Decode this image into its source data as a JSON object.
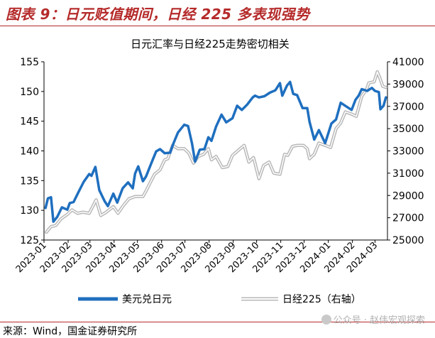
{
  "figure": {
    "title": "图表 9：日元贬值期间，日经 225 多表现强势",
    "source": "来源：Wind，国金证券研究所",
    "watermark": "公众号 · 赵伟宏观探索"
  },
  "chart_data": {
    "type": "line",
    "title": "日元汇率与日经225走势密切相关",
    "x_labels": [
      "2023-01",
      "2023-02",
      "2023-03",
      "2023-04",
      "2023-05",
      "2023-06",
      "2023-07",
      "2023-08",
      "2023-09",
      "2023-10",
      "2023-11",
      "2023-12",
      "2024-01",
      "2024-02",
      "2024-03"
    ],
    "y_left": {
      "min": 125,
      "max": 155,
      "ticks": [
        125,
        130,
        135,
        140,
        145,
        150,
        155
      ]
    },
    "y_right": {
      "min": 25000,
      "max": 41000,
      "ticks": [
        25000,
        27000,
        29000,
        31000,
        33000,
        35000,
        37000,
        39000,
        41000
      ]
    },
    "legend_position": "bottom",
    "series": [
      {
        "name": "美元兑日元",
        "axis": "left",
        "color": "#1f6fbf",
        "points": [
          [
            "2023-01-03",
            130.4
          ],
          [
            "2023-01-06",
            132.0
          ],
          [
            "2023-01-10",
            132.2
          ],
          [
            "2023-01-13",
            128.1
          ],
          [
            "2023-01-18",
            128.9
          ],
          [
            "2023-01-24",
            130.5
          ],
          [
            "2023-01-31",
            130.1
          ],
          [
            "2023-02-03",
            131.2
          ],
          [
            "2023-02-08",
            131.4
          ],
          [
            "2023-02-14",
            133.0
          ],
          [
            "2023-02-21",
            134.8
          ],
          [
            "2023-02-28",
            136.1
          ],
          [
            "2023-03-03",
            135.8
          ],
          [
            "2023-03-08",
            137.3
          ],
          [
            "2023-03-13",
            133.4
          ],
          [
            "2023-03-20",
            131.5
          ],
          [
            "2023-03-24",
            130.7
          ],
          [
            "2023-03-31",
            132.8
          ],
          [
            "2023-04-05",
            131.3
          ],
          [
            "2023-04-12",
            133.7
          ],
          [
            "2023-04-19",
            134.7
          ],
          [
            "2023-04-25",
            133.7
          ],
          [
            "2023-04-28",
            136.2
          ],
          [
            "2023-05-02",
            137.4
          ],
          [
            "2023-05-08",
            134.9
          ],
          [
            "2023-05-12",
            135.7
          ],
          [
            "2023-05-19",
            138.0
          ],
          [
            "2023-05-25",
            139.9
          ],
          [
            "2023-05-30",
            140.3
          ],
          [
            "2023-06-05",
            139.6
          ],
          [
            "2023-06-12",
            139.7
          ],
          [
            "2023-06-16",
            141.2
          ],
          [
            "2023-06-22",
            143.1
          ],
          [
            "2023-06-30",
            144.4
          ],
          [
            "2023-07-05",
            144.2
          ],
          [
            "2023-07-10",
            141.3
          ],
          [
            "2023-07-14",
            138.2
          ],
          [
            "2023-07-20",
            140.2
          ],
          [
            "2023-07-26",
            140.3
          ],
          [
            "2023-07-31",
            142.3
          ],
          [
            "2023-08-04",
            141.7
          ],
          [
            "2023-08-10",
            144.1
          ],
          [
            "2023-08-17",
            146.1
          ],
          [
            "2023-08-23",
            144.8
          ],
          [
            "2023-08-31",
            145.5
          ],
          [
            "2023-09-06",
            147.6
          ],
          [
            "2023-09-12",
            146.9
          ],
          [
            "2023-09-19",
            147.8
          ],
          [
            "2023-09-26",
            149.0
          ],
          [
            "2023-09-29",
            149.3
          ],
          [
            "2023-10-04",
            149.0
          ],
          [
            "2023-10-11",
            149.2
          ],
          [
            "2023-10-18",
            149.8
          ],
          [
            "2023-10-25",
            150.2
          ],
          [
            "2023-10-31",
            151.4
          ],
          [
            "2023-11-03",
            149.3
          ],
          [
            "2023-11-09",
            151.0
          ],
          [
            "2023-11-13",
            151.6
          ],
          [
            "2023-11-17",
            149.6
          ],
          [
            "2023-11-22",
            149.4
          ],
          [
            "2023-11-29",
            147.2
          ],
          [
            "2023-12-05",
            147.2
          ],
          [
            "2023-12-08",
            144.9
          ],
          [
            "2023-12-14",
            141.9
          ],
          [
            "2023-12-20",
            143.5
          ],
          [
            "2023-12-28",
            141.3
          ],
          [
            "2024-01-05",
            144.6
          ],
          [
            "2024-01-11",
            145.3
          ],
          [
            "2024-01-17",
            148.1
          ],
          [
            "2024-01-24",
            147.5
          ],
          [
            "2024-01-31",
            146.9
          ],
          [
            "2024-02-05",
            148.6
          ],
          [
            "2024-02-09",
            149.3
          ],
          [
            "2024-02-13",
            150.4
          ],
          [
            "2024-02-20",
            150.1
          ],
          [
            "2024-02-26",
            150.6
          ],
          [
            "2024-03-01",
            150.1
          ],
          [
            "2024-03-06",
            149.9
          ],
          [
            "2024-03-08",
            147.0
          ],
          [
            "2024-03-12",
            147.6
          ],
          [
            "2024-03-15",
            149.0
          ]
        ]
      },
      {
        "name": "日经225（右轴）",
        "axis": "right",
        "color": "#b8b8b8",
        "points": [
          [
            "2023-01-04",
            25700
          ],
          [
            "2023-01-10",
            26200
          ],
          [
            "2023-01-16",
            26300
          ],
          [
            "2023-01-23",
            26900
          ],
          [
            "2023-01-31",
            27300
          ],
          [
            "2023-02-06",
            27700
          ],
          [
            "2023-02-13",
            27400
          ],
          [
            "2023-02-20",
            27500
          ],
          [
            "2023-02-28",
            27400
          ],
          [
            "2023-03-06",
            28200
          ],
          [
            "2023-03-09",
            28600
          ],
          [
            "2023-03-15",
            27200
          ],
          [
            "2023-03-22",
            27500
          ],
          [
            "2023-03-31",
            28000
          ],
          [
            "2023-04-06",
            27400
          ],
          [
            "2023-04-13",
            28100
          ],
          [
            "2023-04-20",
            28700
          ],
          [
            "2023-04-28",
            28900
          ],
          [
            "2023-05-08",
            28900
          ],
          [
            "2023-05-12",
            29400
          ],
          [
            "2023-05-17",
            30100
          ],
          [
            "2023-05-23",
            30900
          ],
          [
            "2023-05-30",
            31300
          ],
          [
            "2023-06-05",
            32200
          ],
          [
            "2023-06-09",
            32300
          ],
          [
            "2023-06-15",
            33500
          ],
          [
            "2023-06-22",
            33200
          ],
          [
            "2023-06-30",
            33200
          ],
          [
            "2023-07-06",
            32800
          ],
          [
            "2023-07-12",
            31900
          ],
          [
            "2023-07-18",
            32500
          ],
          [
            "2023-07-25",
            32700
          ],
          [
            "2023-07-31",
            33200
          ],
          [
            "2023-08-04",
            32200
          ],
          [
            "2023-08-10",
            32500
          ],
          [
            "2023-08-18",
            31500
          ],
          [
            "2023-08-25",
            31600
          ],
          [
            "2023-08-31",
            32600
          ],
          [
            "2023-09-05",
            32900
          ],
          [
            "2023-09-15",
            33500
          ],
          [
            "2023-09-21",
            32000
          ],
          [
            "2023-09-27",
            32400
          ],
          [
            "2023-09-29",
            31900
          ],
          [
            "2023-10-04",
            30500
          ],
          [
            "2023-10-10",
            31700
          ],
          [
            "2023-10-17",
            32000
          ],
          [
            "2023-10-23",
            31000
          ],
          [
            "2023-10-31",
            30900
          ],
          [
            "2023-11-06",
            32700
          ],
          [
            "2023-11-10",
            32600
          ],
          [
            "2023-11-16",
            33400
          ],
          [
            "2023-11-22",
            33500
          ],
          [
            "2023-11-30",
            33500
          ],
          [
            "2023-12-05",
            33200
          ],
          [
            "2023-12-08",
            32300
          ],
          [
            "2023-12-14",
            32700
          ],
          [
            "2023-12-20",
            33700
          ],
          [
            "2023-12-28",
            33500
          ],
          [
            "2024-01-04",
            33300
          ],
          [
            "2024-01-11",
            35000
          ],
          [
            "2024-01-17",
            35500
          ],
          [
            "2024-01-23",
            36500
          ],
          [
            "2024-01-31",
            36300
          ],
          [
            "2024-02-06",
            36100
          ],
          [
            "2024-02-13",
            37900
          ],
          [
            "2024-02-19",
            38500
          ],
          [
            "2024-02-22",
            39100
          ],
          [
            "2024-02-29",
            39200
          ],
          [
            "2024-03-04",
            40100
          ],
          [
            "2024-03-07",
            39600
          ],
          [
            "2024-03-11",
            38800
          ],
          [
            "2024-03-15",
            38700
          ]
        ]
      }
    ]
  }
}
